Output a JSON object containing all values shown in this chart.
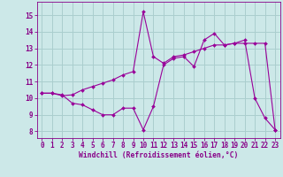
{
  "line1_x": [
    0,
    1,
    2,
    3,
    4,
    5,
    6,
    7,
    8,
    9,
    10,
    11,
    12,
    13,
    14,
    15,
    16,
    17,
    18,
    19,
    20,
    21,
    22,
    23
  ],
  "line1_y": [
    10.3,
    10.3,
    10.2,
    9.7,
    9.6,
    9.3,
    9.0,
    9.0,
    9.4,
    9.4,
    8.1,
    9.5,
    12.0,
    12.4,
    12.5,
    11.9,
    13.5,
    13.9,
    13.2,
    13.3,
    13.5,
    10.0,
    8.8,
    8.1
  ],
  "line2_x": [
    0,
    1,
    2,
    3,
    4,
    5,
    6,
    7,
    8,
    9,
    10,
    11,
    12,
    13,
    14,
    15,
    16,
    17,
    18,
    19,
    20,
    21,
    22,
    23
  ],
  "line2_y": [
    10.3,
    10.3,
    10.15,
    10.2,
    10.5,
    10.7,
    10.9,
    11.1,
    11.4,
    11.6,
    15.2,
    12.5,
    12.1,
    12.5,
    12.6,
    12.8,
    13.0,
    13.2,
    13.2,
    13.3,
    13.3,
    13.3,
    13.3,
    8.1
  ],
  "line_color": "#990099",
  "bg_color": "#cce8e8",
  "grid_color": "#aacece",
  "xlabel": "Windchill (Refroidissement éolien,°C)",
  "xlabel_color": "#880088",
  "tick_color": "#880088",
  "ylim": [
    7.6,
    15.8
  ],
  "xlim": [
    -0.5,
    23.5
  ],
  "yticks": [
    8,
    9,
    10,
    11,
    12,
    13,
    14,
    15
  ],
  "xticks": [
    0,
    1,
    2,
    3,
    4,
    5,
    6,
    7,
    8,
    9,
    10,
    11,
    12,
    13,
    14,
    15,
    16,
    17,
    18,
    19,
    20,
    21,
    22,
    23
  ]
}
